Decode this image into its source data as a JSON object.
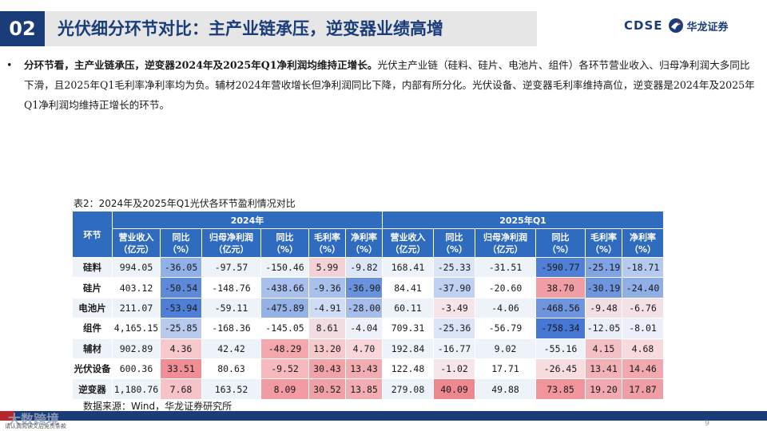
{
  "header": {
    "section_number": "02",
    "title": "光伏细分环节对比：主产业链承压，逆变器业绩高增",
    "logo_en": "CDSE",
    "logo_cn": "华龙证券"
  },
  "bullet": {
    "bold_text": "分环节看，主产业链承压，逆变器2024年及2025年Q1净利润均维持正增长。",
    "body_text": "光伏主产业链（硅料、硅片、电池片、组件）各环节营业收入、归母净利润大多同比下滑，且2025年Q1毛利率净利率均为负。辅材2024年营收增长但净利润同比下降，内部有所分化。光伏设备、逆变器毛利率维持高位，逆变器是2024年及2025年Q1净利润均维持正增长的环节。"
  },
  "table": {
    "caption": "表2：2024年及2025年Q1光伏各环节盈利情况对比",
    "row_header": "环节",
    "groups": [
      "2024年",
      "2025年Q1"
    ],
    "columns": [
      "营业收入\n（亿元）",
      "同比\n（%）",
      "归母净利润\n（亿元）",
      "同比\n（%）",
      "毛利率\n（%）",
      "净利率\n（%）",
      "营业收入\n（亿元）",
      "同比\n（%）",
      "归母净利润\n（亿元）",
      "同比\n（%）",
      "毛利率\n（%）",
      "净利率\n（%）"
    ],
    "rows": [
      {
        "name": "硅料",
        "cells": [
          [
            "994.05",
            ""
          ],
          [
            "-36.05",
            "#8fb0e8"
          ],
          [
            "-97.57",
            ""
          ],
          [
            "-150.46",
            ""
          ],
          [
            "5.99",
            "#f3d2d6"
          ],
          [
            "-9.82",
            "#dde6f8"
          ],
          [
            "168.41",
            ""
          ],
          [
            "-25.33",
            "#dce5f7"
          ],
          [
            "-31.51",
            ""
          ],
          [
            "-590.77",
            "#4f7fd6"
          ],
          [
            "-25.19",
            "#7fa3e3"
          ],
          [
            "-18.71",
            "#b5caef"
          ]
        ]
      },
      {
        "name": "硅片",
        "cells": [
          [
            "403.12",
            ""
          ],
          [
            "-50.54",
            "#5f8ad9"
          ],
          [
            "-148.76",
            ""
          ],
          [
            "-438.66",
            "#a9c0ec"
          ],
          [
            "-9.36",
            "#a9c0ec"
          ],
          [
            "-36.90",
            "#6a92dc"
          ],
          [
            "84.41",
            ""
          ],
          [
            "-37.90",
            "#c0d2f1"
          ],
          [
            "-20.60",
            ""
          ],
          [
            "38.70",
            "#f09ea5"
          ],
          [
            "-30.19",
            "#6e95dd"
          ],
          [
            "-24.40",
            "#90afe6"
          ]
        ]
      },
      {
        "name": "电池片",
        "cells": [
          [
            "211.07",
            ""
          ],
          [
            "-53.94",
            "#5080d6"
          ],
          [
            "-59.11",
            ""
          ],
          [
            "-475.89",
            "#95b2e7"
          ],
          [
            "-4.91",
            "#d0dcf5"
          ],
          [
            "-28.00",
            "#a6bdeb"
          ],
          [
            "60.11",
            ""
          ],
          [
            "-3.49",
            "#f6e4e8"
          ],
          [
            "-4.06",
            ""
          ],
          [
            "-468.56",
            "#6e95dd"
          ],
          [
            "-9.48",
            "#f2dfe4"
          ],
          [
            "-6.76",
            "#f4e1e6"
          ]
        ]
      },
      {
        "name": "组件",
        "cells": [
          [
            "4,165.15",
            ""
          ],
          [
            "-25.85",
            "#b8cbef"
          ],
          [
            "-168.36",
            ""
          ],
          [
            "-145.05",
            ""
          ],
          [
            "8.61",
            "#f1dde1"
          ],
          [
            "-4.04",
            "#eef1fa"
          ],
          [
            "709.31",
            ""
          ],
          [
            "-25.36",
            "#dce5f7"
          ],
          [
            "-56.79",
            ""
          ],
          [
            "-758.34",
            "#4677d4"
          ],
          [
            "-12.05",
            "#eaeef9"
          ],
          [
            "-8.01",
            "#eceff9"
          ]
        ]
      },
      {
        "name": "辅材",
        "cells": [
          [
            "902.89",
            ""
          ],
          [
            "4.36",
            "#f7c9cd"
          ],
          [
            "42.42",
            ""
          ],
          [
            "-48.29",
            "#f4a8ae"
          ],
          [
            "13.20",
            "#f6c9cd"
          ],
          [
            "4.70",
            "#f8d6da"
          ],
          [
            "192.84",
            ""
          ],
          [
            "-16.77",
            ""
          ],
          [
            "9.02",
            ""
          ],
          [
            "-55.16",
            ""
          ],
          [
            "4.15",
            "#f5c0c5"
          ],
          [
            "4.68",
            "#f8d9dc"
          ]
        ]
      },
      {
        "name": "光伏设备",
        "cells": [
          [
            "600.36",
            ""
          ],
          [
            "33.51",
            "#f08e96"
          ],
          [
            "80.63",
            ""
          ],
          [
            "-9.52",
            "#f6b9be"
          ],
          [
            "30.43",
            "#f0a3a9"
          ],
          [
            "13.43",
            "#f2adb3"
          ],
          [
            "122.48",
            ""
          ],
          [
            "-1.02",
            "#f6e6ea"
          ],
          [
            "17.71",
            ""
          ],
          [
            "-26.45",
            "#f8dde0"
          ],
          [
            "13.41",
            "#f2b1b7"
          ],
          [
            "14.46",
            "#f1a9af"
          ]
        ]
      },
      {
        "name": "逆变器",
        "cells": [
          [
            "1,180.76",
            ""
          ],
          [
            "7.68",
            "#f6c3c8"
          ],
          [
            "163.52",
            ""
          ],
          [
            "8.09",
            "#f29ba2"
          ],
          [
            "30.52",
            "#f0a1a8"
          ],
          [
            "13.85",
            "#f2acb2"
          ],
          [
            "279.08",
            ""
          ],
          [
            "40.09",
            "#ee8890"
          ],
          [
            "49.88",
            ""
          ],
          [
            "73.85",
            "#f0959c"
          ],
          [
            "19.20",
            "#f1a9af"
          ],
          [
            "17.87",
            "#f09ea5"
          ]
        ]
      }
    ]
  },
  "source": "数据来源：Wind，华龙证券研究所",
  "footer": {
    "watermark": "大数跨境",
    "note": "请认真阅读文后免责条款",
    "page_number": "9"
  },
  "colors": {
    "navy": "#1a3d7a",
    "header_blue": "#2f6bbf",
    "title_bg": "#e6e6e6"
  }
}
